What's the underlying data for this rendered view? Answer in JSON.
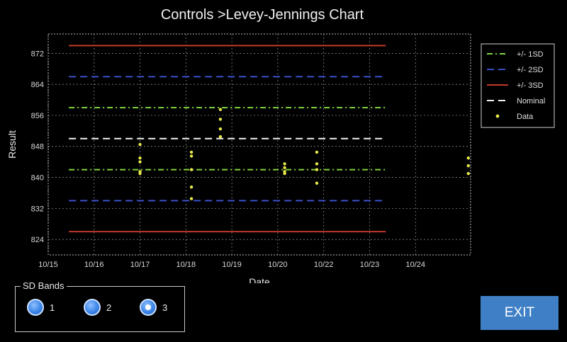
{
  "title": "Controls >Levey-Jennings Chart",
  "chart_data": {
    "type": "scatter",
    "xlabel": "Date",
    "ylabel": "Result",
    "xlim": [
      10.15,
      10.242
    ],
    "ylim": [
      820,
      877
    ],
    "x_ticks": [
      {
        "label": "10/15",
        "value": 10.15
      },
      {
        "label": "10/16",
        "value": 10.16
      },
      {
        "label": "10/17",
        "value": 10.17
      },
      {
        "label": "10/18",
        "value": 10.18
      },
      {
        "label": "10/19",
        "value": 10.19
      },
      {
        "label": "10/20",
        "value": 10.2
      },
      {
        "label": "10/22",
        "value": 10.21
      },
      {
        "label": "10/23",
        "value": 10.22
      },
      {
        "label": "10/24",
        "value": 10.23
      }
    ],
    "y_ticks": [
      "824",
      "832",
      "840",
      "848",
      "856",
      "864",
      "872"
    ],
    "grid": true,
    "legend_position": "right",
    "reference_lines": [
      {
        "name": "+/- 1SD",
        "color": "#7fd23a",
        "style": "dashdot",
        "values": [
          842,
          858
        ]
      },
      {
        "name": "+/- 2SD",
        "color": "#3a4fc8",
        "style": "dashed",
        "values": [
          834,
          866
        ]
      },
      {
        "name": "+/- 3SD",
        "color": "#c0392b",
        "style": "solid",
        "values": [
          826,
          874
        ]
      },
      {
        "name": "Nominal",
        "color": "#f2f2f2",
        "style": "dashed",
        "values": [
          850
        ]
      }
    ],
    "data_series": {
      "name": "Data",
      "color": "#e6e84a",
      "points": [
        [
          10.17,
          848.5
        ],
        [
          10.17,
          845
        ],
        [
          10.17,
          844
        ],
        [
          10.17,
          841.5
        ],
        [
          10.17,
          841
        ],
        [
          10.1812,
          846.5
        ],
        [
          10.1812,
          845.5
        ],
        [
          10.1812,
          842
        ],
        [
          10.1812,
          837.5
        ],
        [
          10.1812,
          834.5
        ],
        [
          10.1875,
          857.5
        ],
        [
          10.1875,
          855
        ],
        [
          10.1875,
          852.5
        ],
        [
          10.1875,
          850.5
        ],
        [
          10.2015,
          843.5
        ],
        [
          10.2015,
          842.5
        ],
        [
          10.2015,
          841.5
        ],
        [
          10.2015,
          841
        ],
        [
          10.2085,
          846.5
        ],
        [
          10.2085,
          843.5
        ],
        [
          10.2085,
          842
        ],
        [
          10.2085,
          838.5
        ],
        [
          10.2415,
          845
        ],
        [
          10.2415,
          843
        ],
        [
          10.2415,
          841
        ]
      ]
    }
  },
  "legend": {
    "items": [
      {
        "label": "+/- 1SD",
        "color": "#7fd23a",
        "style": "dashdot"
      },
      {
        "label": "+/- 2SD",
        "color": "#3a4fc8",
        "style": "dashed"
      },
      {
        "label": "+/- 3SD",
        "color": "#c0392b",
        "style": "solid"
      },
      {
        "label": "Nominal",
        "color": "#f2f2f2",
        "style": "dashed"
      },
      {
        "label": "Data",
        "color": "#e6e84a",
        "style": "marker"
      }
    ]
  },
  "sd_bands": {
    "label": "SD Bands",
    "options": [
      "1",
      "2",
      "3"
    ],
    "selected": "3"
  },
  "exit_label": "EXIT"
}
